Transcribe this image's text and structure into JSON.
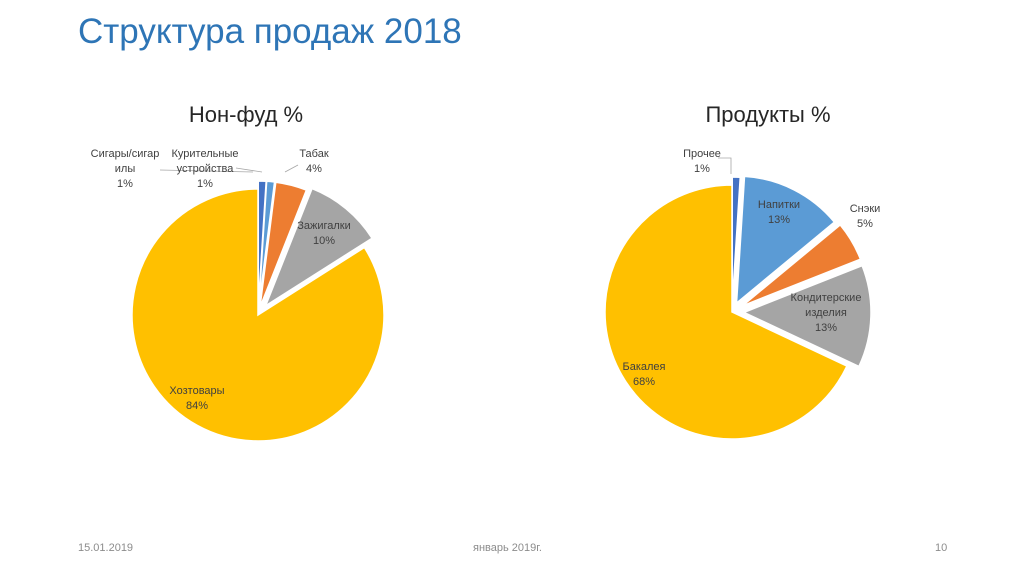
{
  "slide": {
    "title": "Структура продаж 2018",
    "footer_date": "15.01.2019",
    "footer_center": "январь 2019г.",
    "page_number": "10"
  },
  "chart_data": [
    {
      "type": "pie",
      "title": "Нон-фуд %",
      "slices": [
        {
          "label_lines": [
            "Сигары/сигар",
            "илы"
          ],
          "value": 1,
          "value_label": "1%",
          "color": "#4472c4"
        },
        {
          "label_lines": [
            "Курительные",
            "устройства"
          ],
          "value": 1,
          "value_label": "1%",
          "color": "#5b9bd5"
        },
        {
          "label_lines": [
            "Табак"
          ],
          "value": 4,
          "value_label": "4%",
          "color": "#ed7d31"
        },
        {
          "label_lines": [
            "Зажигалки"
          ],
          "value": 10,
          "value_label": "10%",
          "color": "#a5a5a5"
        },
        {
          "label_lines": [
            "Хозтовары"
          ],
          "value": 84,
          "value_label": "84%",
          "color": "#ffc000"
        }
      ]
    },
    {
      "type": "pie",
      "title": "Продукты %",
      "slices": [
        {
          "label_lines": [
            "Прочее"
          ],
          "value": 1,
          "value_label": "1%",
          "color": "#4472c4"
        },
        {
          "label_lines": [
            "Напитки"
          ],
          "value": 13,
          "value_label": "13%",
          "color": "#5b9bd5"
        },
        {
          "label_lines": [
            "Снэки"
          ],
          "value": 5,
          "value_label": "5%",
          "color": "#ed7d31"
        },
        {
          "label_lines": [
            "Кондитерские",
            "изделия"
          ],
          "value": 13,
          "value_label": "13%",
          "color": "#a5a5a5"
        },
        {
          "label_lines": [
            "Бакалея"
          ],
          "value": 68,
          "value_label": "68%",
          "color": "#ffc000"
        }
      ]
    }
  ]
}
